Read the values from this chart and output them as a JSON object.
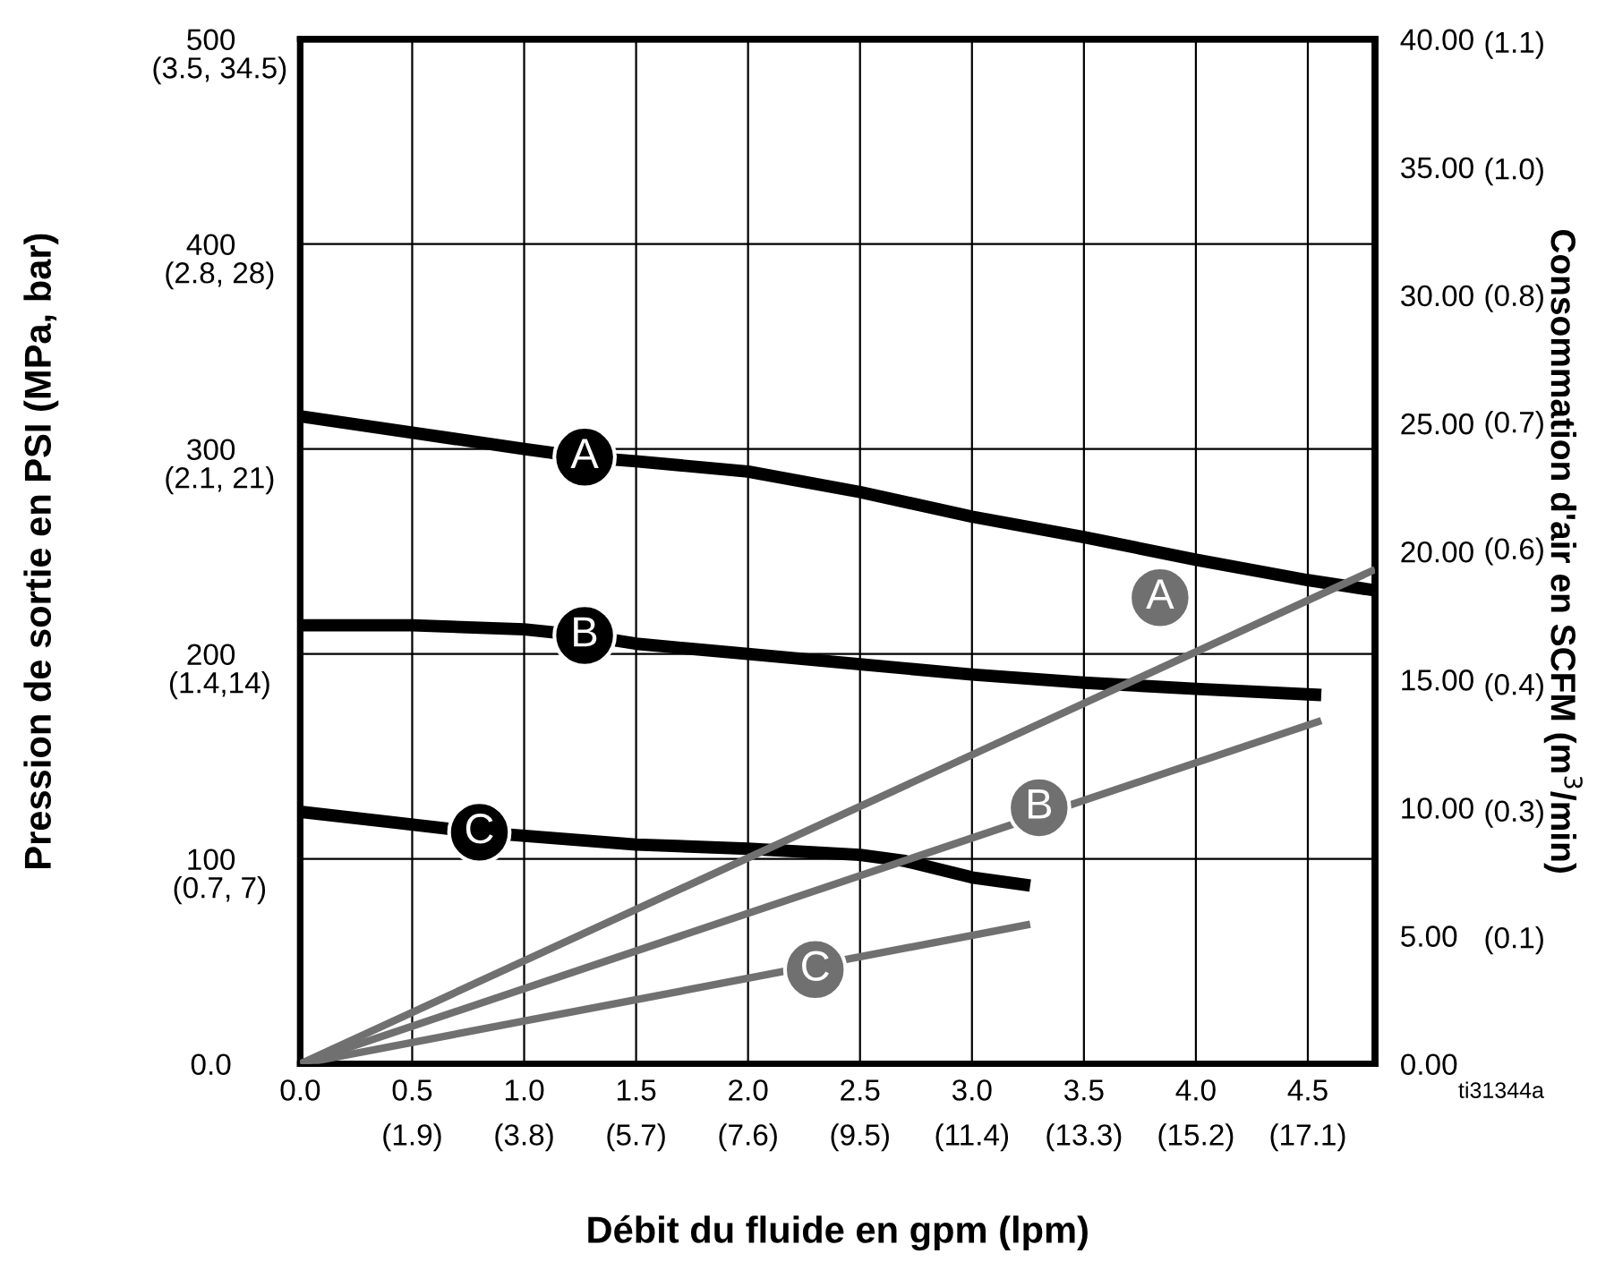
{
  "chart_data": {
    "type": "line",
    "xlabel": "Débit du fluide en gpm (lpm)",
    "ylabel": "Pression de sortie en PSI (MPa, bar)",
    "y2label": "Consommation d'air en SCFM (m$^{3}$/min)",
    "series": [
      {
        "color": "#000000",
        "x": [
          0,
          0.5,
          1.0,
          1.27,
          1.5,
          2.0,
          2.5,
          3.0,
          3.5,
          4.0,
          4.5,
          4.8
        ],
        "values": [
          316,
          308,
          300,
          296,
          294,
          289,
          279,
          267,
          257,
          246,
          236,
          231
        ]
      },
      {
        "color": "#000000",
        "x": [
          0,
          0.5,
          1.0,
          1.27,
          1.5,
          2.0,
          2.5,
          3.0,
          3.5,
          4.0,
          4.56
        ],
        "values": [
          214,
          214,
          212,
          209,
          205,
          200,
          195,
          190,
          186,
          183,
          180
        ]
      },
      {
        "color": "#000000",
        "x": [
          0,
          0.4,
          0.8,
          1.5,
          2.0,
          2.5,
          2.7,
          3.0,
          3.26
        ],
        "values": [
          123,
          118,
          113,
          107,
          105,
          102,
          99,
          91,
          87
        ]
      },
      {
        "color": "#707070",
        "axis": "y2",
        "x": [
          0,
          4.8
        ],
        "values": [
          0,
          19.3
        ]
      },
      {
        "color": "#707070",
        "axis": "y2",
        "x": [
          0,
          4.56
        ],
        "values": [
          0,
          13.4
        ]
      },
      {
        "color": "#707070",
        "axis": "y2",
        "x": [
          0,
          3.26
        ],
        "values": [
          0,
          5.45
        ]
      }
    ],
    "annotations": [
      {
        "text": "A",
        "x": 1.27,
        "y": 296
      },
      {
        "text": "B",
        "x": 1.27,
        "y": 209
      },
      {
        "text": "C",
        "x": 0.8,
        "y": 113
      },
      {
        "text": "A",
        "x": 3.84,
        "y": 227.5
      },
      {
        "text": "B",
        "x": 3.3,
        "y": 125
      },
      {
        "text": "C",
        "x": 2.3,
        "y": 46
      },
      "(0.7, 7)",
      "(1.4,14)",
      "(2.1, 21)",
      "(2.8, 28)",
      "(3.5, 34.5)",
      "ti31344a"
    ],
    "y3lim": [
      0,
      1.133
    ],
    "y3ticks": [
      {
        "value": 0.14,
        "label": "(0.1)"
      },
      {
        "value": 0.28,
        "label": "(0.3)"
      },
      {
        "value": 0.42,
        "label": "(0.4)"
      },
      {
        "value": 0.57,
        "label": "(0.6)"
      },
      {
        "value": 0.71,
        "label": "(0.7)"
      },
      {
        "value": 0.85,
        "label": "(0.8)"
      },
      {
        "value": 0.99,
        "label": "(1.0)"
      },
      {
        "value": 1.13,
        "label": "(1.1)"
      }
    ],
    "xlim": [
      0,
      4.8
    ],
    "xticks": [
      {
        "value": 0,
        "label": "0.0"
      },
      {
        "value": 0.5,
        "label": "0.5"
      },
      {
        "value": 1.0,
        "label": "1.0"
      },
      {
        "value": 1.5,
        "label": "1.5"
      },
      {
        "value": 2.0,
        "label": "2.0"
      },
      {
        "value": 2.5,
        "label": "2.5"
      },
      {
        "value": 3.0,
        "label": "3.0"
      },
      {
        "value": 3.5,
        "label": "3.5"
      },
      {
        "value": 4.0,
        "label": "4.0"
      },
      {
        "value": 4.5,
        "label": "4.5"
      }
    ],
    "x2lim": [
      0,
      18.24
    ],
    "x2ticks": [
      {
        "value": 1.9,
        "label": "(1.9)"
      },
      {
        "value": 3.8,
        "label": "(3.8)"
      },
      {
        "value": 5.7,
        "label": "(5.7)"
      },
      {
        "value": 7.6,
        "label": "(7.6)"
      },
      {
        "value": 9.5,
        "label": "(9.5)"
      },
      {
        "value": 11.4,
        "label": "(11.4)"
      },
      {
        "value": 13.3,
        "label": "(13.3)"
      },
      {
        "value": 15.2,
        "label": "(15.2)"
      },
      {
        "value": 17.1,
        "label": "(17.1)"
      }
    ],
    "ylim": [
      0,
      500
    ],
    "yticks": [
      {
        "value": 0,
        "label": "0.0"
      },
      100,
      200,
      300,
      400,
      500
    ],
    "y2lim": [
      0,
      40
    ],
    "y2ticks": [
      {
        "value": 0,
        "label": "0.00"
      },
      {
        "value": 5,
        "label": "5.00"
      },
      {
        "value": 10,
        "label": "10.00"
      },
      {
        "value": 15,
        "label": "15.00"
      },
      {
        "value": 20,
        "label": "20.00"
      },
      {
        "value": 25,
        "label": "25.00"
      },
      {
        "value": 30,
        "label": "30.00"
      },
      {
        "value": 35,
        "label": "35.00"
      },
      {
        "value": 40,
        "label": "40.00"
      }
    ],
    "grid": true,
    "marker": "none",
    "line_style": "solid"
  }
}
